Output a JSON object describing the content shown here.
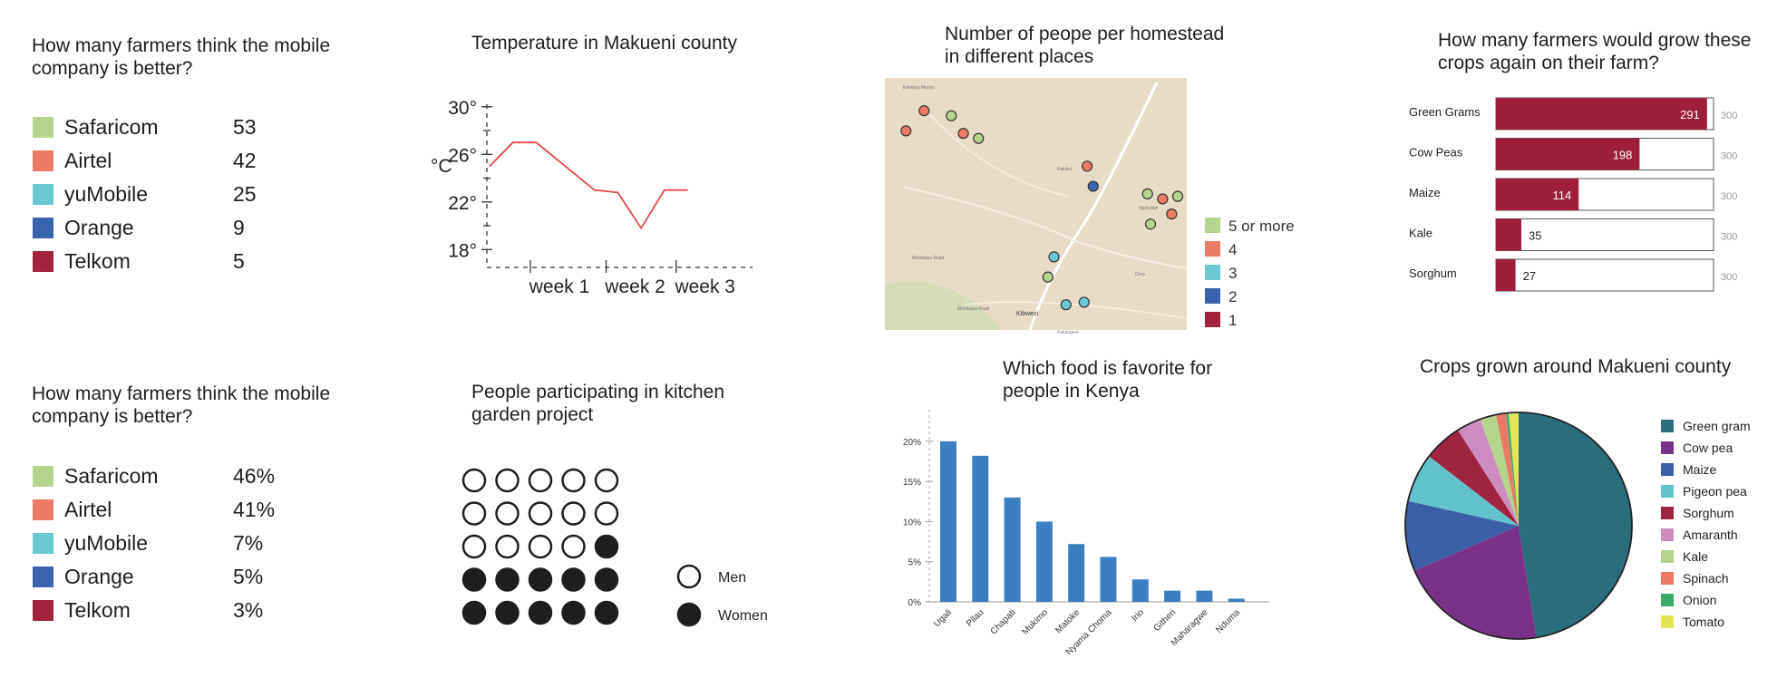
{
  "chart_data": [
    {
      "type": "table",
      "title": "How many farmers think the mobile company is better?",
      "categories": [
        "Safaricom",
        "Airtel",
        "yuMobile",
        "Orange",
        "Telkom"
      ],
      "values": [
        "53",
        "42",
        "25",
        "9",
        "5"
      ],
      "colors": [
        "#b5d58e",
        "#ec7b66",
        "#6ac8d3",
        "#3a63ad",
        "#a3233f"
      ]
    },
    {
      "type": "line",
      "title": "Temperature in Makueni county",
      "ylabel": "°C",
      "ytick_labels": [
        "30°",
        "26°",
        "22°",
        "18°"
      ],
      "xtick_labels": [
        "week 1",
        "week 2",
        "week 3"
      ],
      "ylim": [
        16.5,
        32.5
      ],
      "xlim": [
        0,
        21
      ],
      "x": [
        0,
        2,
        4,
        9,
        11,
        13,
        15,
        17
      ],
      "values": [
        25,
        27,
        27,
        23,
        22.8,
        19.8,
        23,
        23
      ],
      "color": "#e5474a"
    },
    {
      "type": "scatter",
      "title": "Number of peope per homestead in different places",
      "legend": [
        "5 or more",
        "4",
        "3",
        "2",
        "1"
      ],
      "colors": [
        "#b5d58e",
        "#ec7b66",
        "#6ac8d3",
        "#3a63ad",
        "#a3233f"
      ],
      "map_labels": [
        "Kambya Munyu",
        "Kalulini",
        "Ngandani",
        "Kibwezi",
        "Kakangeni",
        "Mombasa Road",
        "Mombasa Road",
        "Oma"
      ],
      "points": [
        {
          "x": 0.13,
          "y": 0.13,
          "group": "4"
        },
        {
          "x": 0.22,
          "y": 0.15,
          "group": "5 or more"
        },
        {
          "x": 0.26,
          "y": 0.22,
          "group": "4"
        },
        {
          "x": 0.31,
          "y": 0.24,
          "group": "5 or more"
        },
        {
          "x": 0.07,
          "y": 0.21,
          "group": "4"
        },
        {
          "x": 0.67,
          "y": 0.35,
          "group": "4"
        },
        {
          "x": 0.69,
          "y": 0.43,
          "group": "2"
        },
        {
          "x": 0.87,
          "y": 0.46,
          "group": "5 or more"
        },
        {
          "x": 0.92,
          "y": 0.48,
          "group": "4"
        },
        {
          "x": 0.97,
          "y": 0.47,
          "group": "5 or more"
        },
        {
          "x": 0.95,
          "y": 0.54,
          "group": "4"
        },
        {
          "x": 0.88,
          "y": 0.58,
          "group": "5 or more"
        },
        {
          "x": 0.56,
          "y": 0.71,
          "group": "3"
        },
        {
          "x": 0.54,
          "y": 0.79,
          "group": "5 or more"
        },
        {
          "x": 0.6,
          "y": 0.9,
          "group": "3"
        },
        {
          "x": 0.66,
          "y": 0.89,
          "group": "3"
        }
      ]
    },
    {
      "type": "bar",
      "title": "How many farmers would grow these crops again on their farm?",
      "categories": [
        "Green Grams",
        "Cow Peas",
        "Maize",
        "Kale",
        "Sorghum"
      ],
      "values": [
        291,
        198,
        114,
        35,
        27
      ],
      "max_label": "300",
      "xlim": [
        0,
        300
      ],
      "color": "#9e1f3b"
    },
    {
      "type": "table",
      "title": "How many farmers think the mobile company is better?",
      "categories": [
        "Safaricom",
        "Airtel",
        "yuMobile",
        "Orange",
        "Telkom"
      ],
      "values": [
        "46%",
        "41%",
        "7%",
        "5%",
        "3%"
      ],
      "colors": [
        "#b5d58e",
        "#ec7b66",
        "#6ac8d3",
        "#3a63ad",
        "#a3233f"
      ]
    },
    {
      "type": "scatter",
      "title": "People participating in kitchen garden project",
      "legend": [
        "Men",
        "Women"
      ],
      "values": [
        14,
        11
      ]
    },
    {
      "type": "bar",
      "title": "Which food is favorite for people in Kenya",
      "categories": [
        "Ugali",
        "Pilau",
        "Chapati",
        "Mukimo",
        "Matoke",
        "Nyama Choma",
        "Irio",
        "Githeri",
        "Maharagwe",
        "Nduma"
      ],
      "values": [
        20,
        18.2,
        13,
        10,
        7.2,
        5.6,
        2.8,
        1.4,
        1.4,
        0.4
      ],
      "ytick_labels": [
        "0%",
        "5%",
        "10%",
        "15%",
        "20%"
      ],
      "ylim": [
        0,
        21
      ],
      "color": "#3b7fc1"
    },
    {
      "type": "pie",
      "title": "Crops grown around Makueni county",
      "categories": [
        "Green gram",
        "Cow pea",
        "Maize",
        "Pigeon pea",
        "Sorghum",
        "Amaranth",
        "Kale",
        "Spinach",
        "Onion",
        "Tomato"
      ],
      "values": [
        47.5,
        21,
        10,
        7,
        5.5,
        3.5,
        2.3,
        1.4,
        0.4,
        1.4
      ],
      "colors": [
        "#2a6d7c",
        "#7a3289",
        "#3b5fa6",
        "#62c3cc",
        "#9f2440",
        "#cc8cbf",
        "#b3d48a",
        "#ea7a63",
        "#3cab6a",
        "#e3e457"
      ]
    }
  ]
}
